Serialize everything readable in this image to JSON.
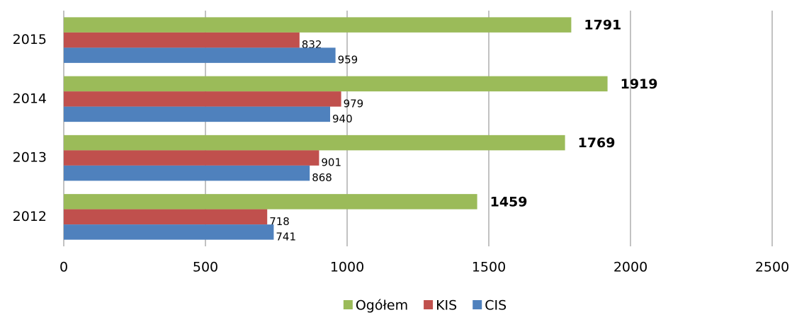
{
  "chart_data": {
    "type": "hbar",
    "categories": [
      "2012",
      "2013",
      "2014",
      "2015"
    ],
    "series": [
      {
        "name": "Ogółem",
        "color": "#9bbb59",
        "values": [
          1459,
          1769,
          1919,
          1791
        ]
      },
      {
        "name": "KIS",
        "color": "#c0504d",
        "values": [
          718,
          901,
          979,
          832
        ]
      },
      {
        "name": "CIS",
        "color": "#4f81bd",
        "values": [
          741,
          868,
          940,
          959
        ]
      }
    ],
    "xlim": [
      0,
      2500
    ],
    "xticks": [
      0,
      500,
      1000,
      1500,
      2000,
      2500
    ],
    "grid": true,
    "legend": "bottom"
  }
}
